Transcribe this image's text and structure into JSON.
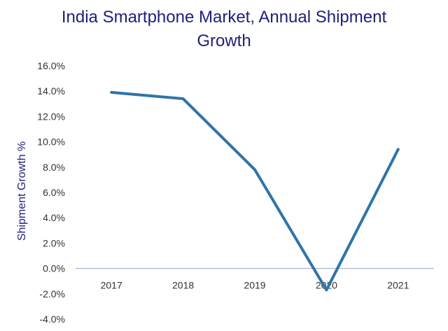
{
  "chart_data": {
    "type": "line",
    "title_line1": "India Smartphone Market, Annual Shipment",
    "title_line2": "Growth",
    "ylabel": "Shipment Growth %",
    "xlabel": "",
    "categories": [
      "2017",
      "2018",
      "2019",
      "2020",
      "2021"
    ],
    "series": [
      {
        "name": "Shipment Growth",
        "values": [
          13.9,
          13.4,
          7.8,
          -1.7,
          9.4
        ],
        "color": "#2f74a8"
      }
    ],
    "ylim": [
      -4.0,
      16.0
    ],
    "yticks": [
      "16.0%",
      "14.0%",
      "12.0%",
      "10.0%",
      "8.0%",
      "6.0%",
      "4.0%",
      "2.0%",
      "0.0%",
      "-2.0%",
      "-4.0%"
    ],
    "ytick_values": [
      16,
      14,
      12,
      10,
      8,
      6,
      4,
      2,
      0,
      -2,
      -4
    ],
    "grid": false,
    "zero_line_color": "#9aa2d8",
    "title_color": "#1f1f7a"
  }
}
